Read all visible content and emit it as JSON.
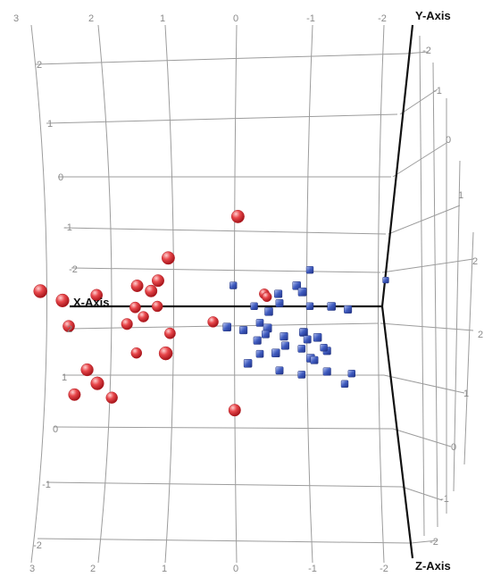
{
  "chart_data": {
    "type": "scatter",
    "projection": "3d",
    "title": "",
    "axes": {
      "x": {
        "label": "X-Axis",
        "range": [
          -2,
          3
        ],
        "ticks_top": [
          "3",
          "2",
          "1",
          "0",
          "-1",
          "-2"
        ],
        "ticks_bottom": [
          "3",
          "2",
          "1",
          "0",
          "-1",
          "-2"
        ]
      },
      "y": {
        "label": "Y-Axis",
        "range": [
          -2,
          2
        ],
        "ticks_left": [
          "2",
          "1",
          "0",
          "-1",
          "-2"
        ],
        "ticks_right": [
          "-2",
          "-1",
          "0",
          "1",
          "2"
        ]
      },
      "z": {
        "label": "Z-Axis",
        "range": [
          -2,
          2
        ],
        "ticks_left": [
          "2",
          "1",
          "0",
          "-1",
          "-2"
        ],
        "ticks_right": [
          "2",
          "1",
          "0",
          "-1",
          "-2"
        ]
      }
    },
    "grid": true,
    "legend": "none",
    "series": [
      {
        "marker": "sphere",
        "color": "#e8474b",
        "points": [
          {
            "x": -0.2,
            "y": 1.9,
            "z": 0.8
          },
          {
            "x": 0.8,
            "y": 1.1,
            "z": 0.8
          },
          {
            "x": 1.0,
            "y": 0.6,
            "z": 0.5
          },
          {
            "x": 1.1,
            "y": 0.4,
            "z": 0.5
          },
          {
            "x": 1.3,
            "y": 0.5,
            "z": 0.5
          },
          {
            "x": 2.6,
            "y": 0.5,
            "z": 1.0
          },
          {
            "x": 2.3,
            "y": 0.3,
            "z": 0.9
          },
          {
            "x": 1.9,
            "y": 0.3,
            "z": 0.4
          },
          {
            "x": 1.1,
            "y": 0.0,
            "z": 0.0
          },
          {
            "x": 1.4,
            "y": 0.0,
            "z": 0.1
          },
          {
            "x": -0.4,
            "y": 0.2,
            "z": -0.2
          },
          {
            "x": -0.4,
            "y": 0.1,
            "z": -0.4
          },
          {
            "x": 2.3,
            "y": -0.3,
            "z": 0.4
          },
          {
            "x": 0.3,
            "y": -0.3,
            "z": 0.0
          },
          {
            "x": 1.3,
            "y": -0.2,
            "z": 0.0
          },
          {
            "x": 1.5,
            "y": -0.3,
            "z": 0.2
          },
          {
            "x": 0.9,
            "y": -0.5,
            "z": 0.1
          },
          {
            "x": 0.8,
            "y": -0.7,
            "z": 1.0
          },
          {
            "x": 1.4,
            "y": -0.9,
            "z": 0.0
          },
          {
            "x": 2.0,
            "y": -1.1,
            "z": 0.6
          },
          {
            "x": 1.8,
            "y": -1.3,
            "z": 0.9
          },
          {
            "x": 2.2,
            "y": -1.6,
            "z": 0.5
          },
          {
            "x": 1.7,
            "y": -1.7,
            "z": 0.3
          },
          {
            "x": -0.1,
            "y": -1.9,
            "z": 0.5
          }
        ]
      },
      {
        "marker": "cube",
        "color": "#3f5bbf",
        "points": [
          {
            "x": -1.0,
            "y": 0.6,
            "z": -0.5
          },
          {
            "x": -0.9,
            "y": 0.4,
            "z": 0.0
          },
          {
            "x": -1.0,
            "y": 0.3,
            "z": 0.1
          },
          {
            "x": 0.1,
            "y": 0.3,
            "z": -0.5
          },
          {
            "x": -0.6,
            "y": 0.2,
            "z": -0.2
          },
          {
            "x": -2.0,
            "y": 0.3,
            "z": -1.0
          },
          {
            "x": -0.6,
            "y": 0.0,
            "z": -0.3
          },
          {
            "x": -0.5,
            "y": -0.1,
            "z": 0.0
          },
          {
            "x": -0.2,
            "y": -0.1,
            "z": -0.5
          },
          {
            "x": -1.0,
            "y": -0.1,
            "z": -0.5
          },
          {
            "x": -1.4,
            "y": 0.0,
            "z": 0.0
          },
          {
            "x": -1.6,
            "y": -0.1,
            "z": -0.2
          },
          {
            "x": -0.3,
            "y": -0.4,
            "z": -0.4
          },
          {
            "x": -0.5,
            "y": -0.4,
            "z": 0.1
          },
          {
            "x": 0.1,
            "y": -0.4,
            "z": 0.0
          },
          {
            "x": -0.1,
            "y": -0.5,
            "z": -0.2
          },
          {
            "x": -0.4,
            "y": -0.6,
            "z": -0.3
          },
          {
            "x": -1.0,
            "y": -0.5,
            "z": 0.0
          },
          {
            "x": -1.2,
            "y": -0.6,
            "z": 0.0
          },
          {
            "x": -0.7,
            "y": -0.6,
            "z": -0.1
          },
          {
            "x": -0.9,
            "y": -0.6,
            "z": -0.5
          },
          {
            "x": -1.0,
            "y": -0.7,
            "z": -0.3
          },
          {
            "x": -0.3,
            "y": -0.7,
            "z": -0.2
          },
          {
            "x": -0.7,
            "y": -0.8,
            "z": -0.2
          },
          {
            "x": -0.9,
            "y": -0.9,
            "z": -0.4
          },
          {
            "x": -1.3,
            "y": -0.9,
            "z": -0.2
          },
          {
            "x": -1.2,
            "y": -0.9,
            "z": -0.5
          },
          {
            "x": -0.6,
            "y": -0.9,
            "z": 0.0
          },
          {
            "x": -1.1,
            "y": -1.0,
            "z": 0.0
          },
          {
            "x": -0.3,
            "y": -1.0,
            "z": -0.4
          },
          {
            "x": -1.1,
            "y": -1.1,
            "z": -0.3
          },
          {
            "x": -0.2,
            "y": -1.1,
            "z": 0.0
          },
          {
            "x": -0.6,
            "y": -1.3,
            "z": -0.3
          },
          {
            "x": -1.3,
            "y": -1.3,
            "z": -0.2
          },
          {
            "x": -0.9,
            "y": -1.4,
            "z": -0.4
          },
          {
            "x": -1.6,
            "y": -1.4,
            "z": -0.5
          },
          {
            "x": -1.5,
            "y": -1.6,
            "z": -0.5
          }
        ]
      }
    ]
  }
}
